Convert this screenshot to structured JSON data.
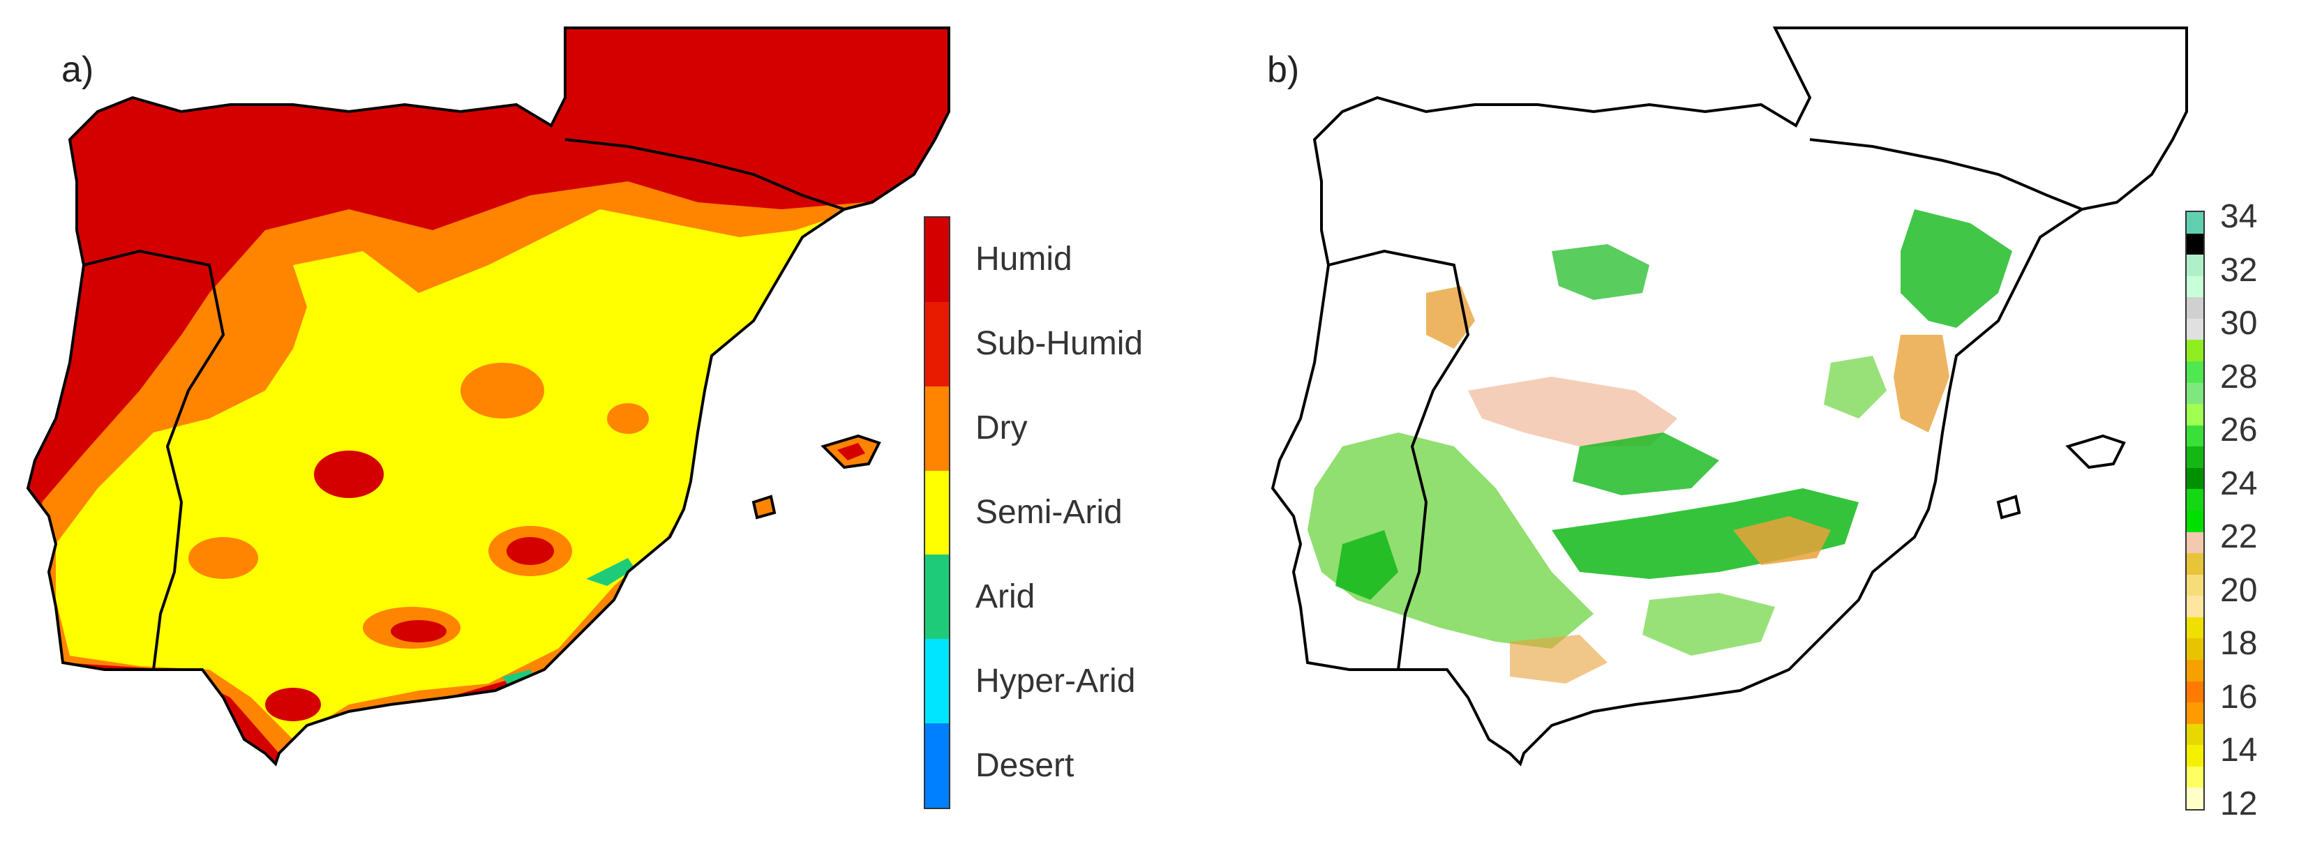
{
  "panel_a": {
    "label": "a)",
    "colors": {
      "humid": "#d40000",
      "dry": "#ff8400",
      "semi_arid": "#ffff00",
      "arid": "#1ecb79",
      "hyper_arid": "#00e5ff",
      "desert": "#0080ff",
      "coastline": "#000000"
    },
    "legend": {
      "colors": [
        "#d40000",
        "#e81a00",
        "#ff8400",
        "#ffff00",
        "#1ecb79",
        "#00e5ff",
        "#0080ff"
      ],
      "labels": [
        "Humid",
        "Sub-Humid",
        "Dry",
        "Semi-Arid",
        "Arid",
        "Hyper-Arid",
        "Desert"
      ]
    }
  },
  "panel_b": {
    "label": "b)",
    "colors": {
      "green_dark": "#12b81a",
      "green_light": "#7ed957",
      "orange": "#e8a23a",
      "pink": "#f3c9b0",
      "coastline": "#000000"
    },
    "legend": {
      "colors": [
        "#ffffc8",
        "#ffff64",
        "#f5f000",
        "#e8d800",
        "#ff9a00",
        "#ff7a00",
        "#f5a100",
        "#e8c400",
        "#f0e000",
        "#ffe6a0",
        "#f5dd7a",
        "#e8c43a",
        "#f5c8b0",
        "#00e000",
        "#14d814",
        "#009000",
        "#14b814",
        "#3ae03a",
        "#a0ff50",
        "#7ee77e",
        "#50e850",
        "#90ee20",
        "#e0e0e0",
        "#d0d0d0",
        "#c8ffd8",
        "#b0f0c8",
        "#000000",
        "#60d0b0"
      ],
      "tick_labels": [
        "34",
        "32",
        "30",
        "28",
        "26",
        "24",
        "22",
        "20",
        "18",
        "16",
        "14",
        "12"
      ]
    }
  }
}
